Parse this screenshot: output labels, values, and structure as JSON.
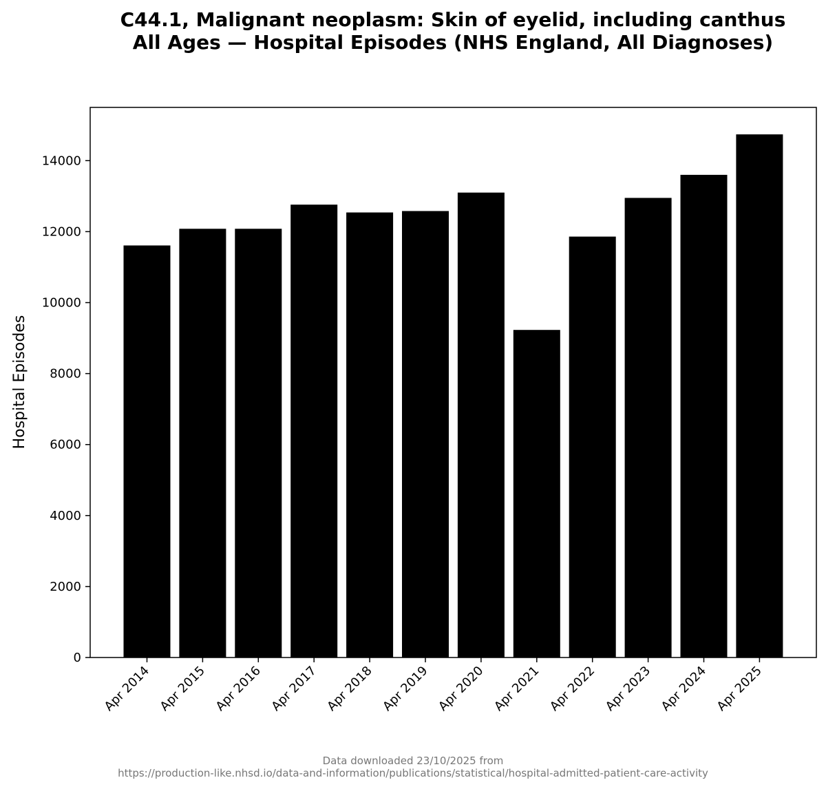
{
  "chart_data": {
    "type": "bar",
    "title": "C44.1, Malignant neoplasm: Skin of eyelid, including canthus",
    "subtitle": "All Ages — Hospital Episodes (NHS England, All Diagnoses)",
    "xlabel": "",
    "ylabel": "Hospital Episodes",
    "categories": [
      "Apr 2014",
      "Apr 2015",
      "Apr 2016",
      "Apr 2017",
      "Apr 2018",
      "Apr 2019",
      "Apr 2020",
      "Apr 2021",
      "Apr 2022",
      "Apr 2023",
      "Apr 2024",
      "Apr 2025"
    ],
    "values": [
      11610,
      12080,
      12080,
      12760,
      12540,
      12580,
      13100,
      9230,
      11860,
      12950,
      13600,
      14740
    ],
    "ylim": [
      0,
      15500
    ],
    "yticks": [
      0,
      2000,
      4000,
      6000,
      8000,
      10000,
      12000,
      14000
    ],
    "bar_color": "#000000",
    "grid": false,
    "legend": "none"
  },
  "footer": {
    "line1": "Data downloaded 23/10/2025 from",
    "line2": "https://production-like.nhsd.io/data-and-information/publications/statistical/hospital-admitted-patient-care-activity"
  },
  "colors": {
    "footer_text": "#777777",
    "bars": "#000000",
    "background": "#ffffff"
  }
}
